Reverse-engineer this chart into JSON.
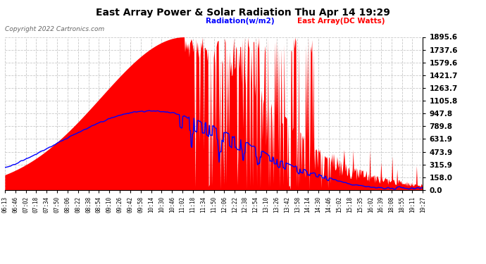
{
  "title": "East Array Power & Solar Radiation Thu Apr 14 19:29",
  "copyright": "Copyright 2022 Cartronics.com",
  "legend_radiation": "Radiation(w/m2)",
  "legend_east_array": "East Array(DC Watts)",
  "radiation_color": "#0000ff",
  "east_array_color": "#ff0000",
  "background_color": "#ffffff",
  "grid_color": "#c8c8c8",
  "ymax": 1895.6,
  "ymin": 0.0,
  "yticks": [
    0.0,
    158.0,
    315.9,
    473.9,
    631.9,
    789.8,
    947.8,
    1105.8,
    1263.7,
    1421.7,
    1579.6,
    1737.6,
    1895.6
  ],
  "xtick_labels": [
    "06:13",
    "06:46",
    "07:02",
    "07:18",
    "07:34",
    "07:50",
    "08:06",
    "08:22",
    "08:38",
    "08:54",
    "09:10",
    "09:26",
    "09:42",
    "09:58",
    "10:14",
    "10:30",
    "10:46",
    "11:02",
    "11:18",
    "11:34",
    "11:50",
    "12:06",
    "12:22",
    "12:38",
    "12:54",
    "13:10",
    "13:26",
    "13:42",
    "13:58",
    "14:14",
    "14:30",
    "14:46",
    "15:02",
    "15:18",
    "15:35",
    "16:02",
    "16:39",
    "18:08",
    "18:55",
    "19:11",
    "19:27"
  ],
  "figsize": [
    6.9,
    3.75
  ],
  "dpi": 100
}
